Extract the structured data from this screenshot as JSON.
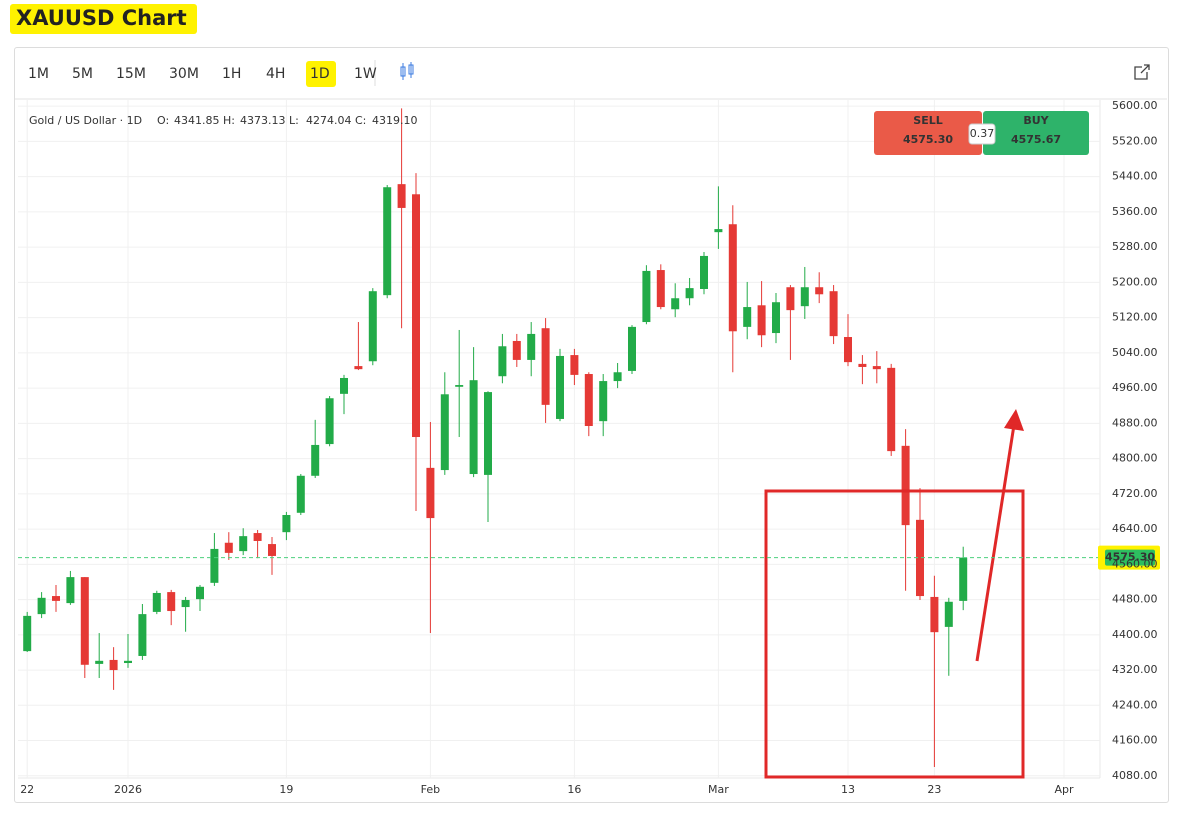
{
  "page_title": "XAUUSD Chart",
  "toolbar": {
    "timeframes": [
      {
        "label": "1M"
      },
      {
        "label": "5M"
      },
      {
        "label": "15M"
      },
      {
        "label": "30M"
      },
      {
        "label": "1H"
      },
      {
        "label": "4H"
      },
      {
        "label": "1D",
        "active": true
      },
      {
        "label": "1W"
      }
    ]
  },
  "trade": {
    "sell_label": "SELL",
    "sell_price": "4575.30",
    "spread": "0.37",
    "buy_label": "BUY",
    "buy_price": "4575.67"
  },
  "chart_data": {
    "type": "candlestick",
    "legend": {
      "symbol": "Gold / US Dollar · 1D",
      "fields": [
        {
          "label": "O:",
          "text": "4341.85"
        },
        {
          "label": "H:",
          "text": "4373.13"
        },
        {
          "label": "L:",
          "text": "4274.04"
        },
        {
          "label": "C:",
          "text": "4319.10"
        }
      ]
    },
    "categories": [
      "22",
      null,
      null,
      null,
      null,
      null,
      null,
      "2026",
      null,
      null,
      null,
      null,
      null,
      null,
      null,
      null,
      null,
      null,
      "19",
      null,
      null,
      null,
      null,
      null,
      null,
      null,
      null,
      null,
      "Feb",
      null,
      null,
      null,
      null,
      null,
      null,
      null,
      null,
      null,
      "16",
      null,
      null,
      null,
      null,
      null,
      null,
      null,
      null,
      null,
      "Mar",
      null,
      null,
      null,
      null,
      null,
      null,
      null,
      null,
      "13",
      null,
      null,
      null,
      null,
      null,
      "23",
      null,
      null,
      null,
      null,
      null,
      null,
      null,
      null,
      "Apr",
      null,
      null
    ],
    "open": [
      4363,
      4447,
      4488,
      4472,
      4531,
      4334,
      4343,
      4336,
      4352,
      4452,
      4497,
      4463,
      4481,
      4518,
      4609,
      4590,
      4631,
      4606,
      4633,
      4677,
      4761,
      4833,
      4947,
      5010,
      5021,
      5171,
      5423,
      5400,
      4779,
      4774,
      4963,
      4765,
      4763,
      4987,
      5067,
      5024,
      5096,
      4890,
      5035,
      4992,
      4885,
      4976,
      4999,
      5110,
      5228,
      5139,
      5164,
      5185,
      5314,
      5332,
      5099,
      5148,
      5085,
      5189,
      5146,
      5189,
      5180,
      5076,
      5015,
      5010,
      5006,
      4829,
      4661,
      4486,
      4418,
      4477,
      null,
      null,
      null,
      null,
      null,
      null,
      null,
      null,
      null
    ],
    "high": [
      4452,
      4497,
      4513,
      4545,
      4531,
      4404,
      4372,
      4402,
      4470,
      4500,
      4502,
      4486,
      4513,
      4631,
      4633,
      4642,
      4638,
      4622,
      4679,
      4765,
      4888,
      4942,
      4990,
      5110,
      5187,
      5421,
      5595,
      5448,
      4883,
      4996,
      5092,
      5053,
      4953,
      5083,
      5083,
      5110,
      5119,
      5049,
      5049,
      4996,
      4992,
      5017,
      5103,
      5239,
      5241,
      5198,
      5210,
      5269,
      5418,
      5375,
      5201,
      5203,
      5176,
      5194,
      5235,
      5223,
      5194,
      5128,
      5035,
      5044,
      5015,
      4867,
      4733,
      4534,
      4484,
      4600,
      null,
      null,
      null,
      null,
      null,
      null,
      null,
      null,
      null
    ],
    "low": [
      4361,
      4438,
      4452,
      4468,
      4302,
      4302,
      4275,
      4325,
      4343,
      4447,
      4422,
      4407,
      4454,
      4511,
      4570,
      4581,
      4574,
      4536,
      4615,
      4672,
      4756,
      4828,
      4901,
      5001,
      5012,
      5164,
      5096,
      4681,
      4404,
      4763,
      4849,
      4758,
      4656,
      4971,
      5008,
      4987,
      4881,
      4885,
      4967,
      4851,
      4851,
      4960,
      4992,
      5105,
      5139,
      5121,
      5148,
      5173,
      5276,
      4996,
      5071,
      5053,
      5062,
      5024,
      5117,
      5153,
      5060,
      5010,
      4969,
      4971,
      4806,
      4500,
      4479,
      4100,
      4307,
      4456,
      null,
      null,
      null,
      null,
      null,
      null,
      null,
      null,
      null
    ],
    "close": [
      4443,
      4484,
      4477,
      4531,
      4332,
      4341,
      4320,
      4341,
      4447,
      4495,
      4454,
      4479,
      4509,
      4595,
      4586,
      4624,
      4613,
      4579,
      4672,
      4761,
      4831,
      4937,
      4983,
      5003,
      5180,
      5416,
      5369,
      4849,
      4665,
      4946,
      4967,
      4978,
      4951,
      5055,
      5024,
      5083,
      4922,
      5033,
      4990,
      4874,
      4976,
      4996,
      5099,
      5226,
      5144,
      5164,
      5187,
      5260,
      5321,
      5089,
      5144,
      5080,
      5155,
      5137,
      5189,
      5173,
      5078,
      5019,
      5008,
      5003,
      4817,
      4649,
      4488,
      4406,
      4475,
      4575.3,
      null,
      null,
      null,
      null,
      null,
      null,
      null,
      null,
      null
    ],
    "up_color": "#22ab48",
    "down_color": "#e53935",
    "ylim": [
      4075,
      5614
    ],
    "yticks": [
      {
        "value": 4080,
        "label": "4080.00"
      },
      {
        "value": 4160,
        "label": "4160.00"
      },
      {
        "value": 4240,
        "label": "4240.00"
      },
      {
        "value": 4320,
        "label": "4320.00"
      },
      {
        "value": 4400,
        "label": "4400.00"
      },
      {
        "value": 4480,
        "label": "4480.00"
      },
      {
        "value": 4560,
        "label": "4560.00"
      },
      {
        "value": 4640,
        "label": "4640.00"
      },
      {
        "value": 4720,
        "label": "4720.00"
      },
      {
        "value": 4800,
        "label": "4800.00"
      },
      {
        "value": 4880,
        "label": "4880.00"
      },
      {
        "value": 4960,
        "label": "4960.00"
      },
      {
        "value": 5040,
        "label": "5040.00"
      },
      {
        "value": 5120,
        "label": "5120.00"
      },
      {
        "value": 5200,
        "label": "5200.00"
      },
      {
        "value": 5280,
        "label": "5280.00"
      },
      {
        "value": 5360,
        "label": "5360.00"
      },
      {
        "value": 5440,
        "label": "5440.00"
      },
      {
        "value": 5520,
        "label": "5520.00"
      },
      {
        "value": 5600,
        "label": "5600.00"
      }
    ],
    "grid": true,
    "price_line": {
      "value": 4575.3,
      "label": "4575.30",
      "color": "#4cd07d"
    }
  }
}
